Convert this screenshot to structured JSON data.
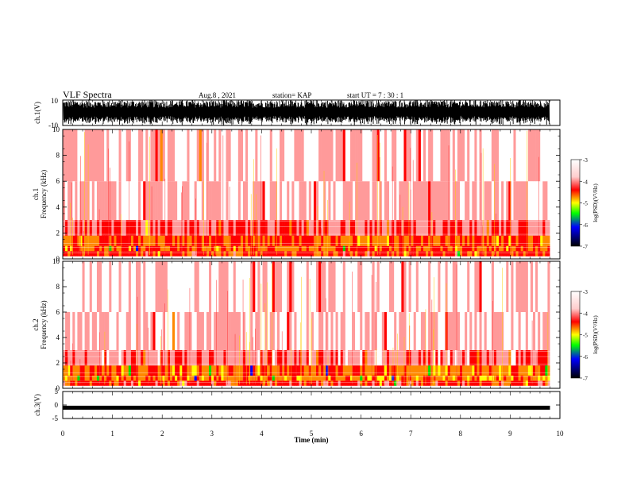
{
  "header": {
    "title": "VLF Spectra",
    "date": "Aug.8 , 2021",
    "station": "station= KAP",
    "start": "start UT = 7 : 30 : 1"
  },
  "colors": {
    "waveform": "#000000",
    "colormap": [
      "#ffffff",
      "#ff0000",
      "#ffff00",
      "#00ff00",
      "#0000ff",
      "#000000"
    ]
  },
  "chart_data": [
    {
      "type": "line",
      "name": "ch1-waveform",
      "ylabel": "ch.1(V)",
      "ylim": [
        -10,
        10
      ],
      "yticks": [
        "10",
        "-10"
      ],
      "xlim": [
        0,
        10
      ],
      "description_level": "dense oscillation filling most of range"
    },
    {
      "type": "heatmap",
      "name": "ch1-spectrogram",
      "ylabel_top": "ch.1",
      "ylabel": "Frequency (kHz)",
      "ylim": [
        0,
        10
      ],
      "yticks": [
        "0",
        "2",
        "4",
        "6",
        "8",
        "10"
      ],
      "xlim": [
        0,
        9.8
      ],
      "colorbar": {
        "label": "log(PSD)(V²/Hz)",
        "range": [
          -7,
          -3
        ],
        "ticks": [
          "-3",
          "-4",
          "-5",
          "-6",
          "-7"
        ]
      },
      "bands": [
        {
          "from": 0.2,
          "to": 0.6,
          "level": -4.3
        },
        {
          "from": 0.6,
          "to": 1.0,
          "level": -4.6
        },
        {
          "from": 1.0,
          "to": 1.8,
          "level": -4.5
        },
        {
          "from": 1.8,
          "to": 3.0,
          "level": -3.8
        },
        {
          "from": 3.0,
          "to": 6.0,
          "level": -3.4
        },
        {
          "from": 6.0,
          "to": 10.0,
          "level": -3.3
        }
      ]
    },
    {
      "type": "heatmap",
      "name": "ch2-spectrogram",
      "ylabel_top": "ch.2",
      "ylabel": "Frequency (kHz)",
      "ylim": [
        0,
        10
      ],
      "yticks": [
        "0",
        "2",
        "4",
        "6",
        "8",
        "10"
      ],
      "xlim": [
        0,
        9.8
      ],
      "colorbar": {
        "label": "log(PSD)(V²/Hz)",
        "range": [
          -7,
          -3
        ],
        "ticks": [
          "-3",
          "-4",
          "-5",
          "-6",
          "-7"
        ]
      },
      "bands": [
        {
          "from": 0.2,
          "to": 0.6,
          "level": -4.2
        },
        {
          "from": 0.6,
          "to": 1.0,
          "level": -4.7
        },
        {
          "from": 1.0,
          "to": 1.8,
          "level": -4.6
        },
        {
          "from": 1.8,
          "to": 3.0,
          "level": -3.7
        },
        {
          "from": 3.0,
          "to": 6.0,
          "level": -3.3
        },
        {
          "from": 6.0,
          "to": 10.0,
          "level": -3.15
        }
      ]
    },
    {
      "type": "line",
      "name": "ch3-waveform",
      "ylabel": "ch.3(V)",
      "ylim": [
        -5,
        5
      ],
      "yticks": [
        "5",
        "0",
        "-5"
      ],
      "xlim": [
        0,
        10
      ],
      "level": -1
    }
  ],
  "xaxis": {
    "label": "Time (min)",
    "ticks": [
      "0",
      "1",
      "2",
      "3",
      "4",
      "5",
      "6",
      "7",
      "8",
      "9",
      "10"
    ]
  }
}
